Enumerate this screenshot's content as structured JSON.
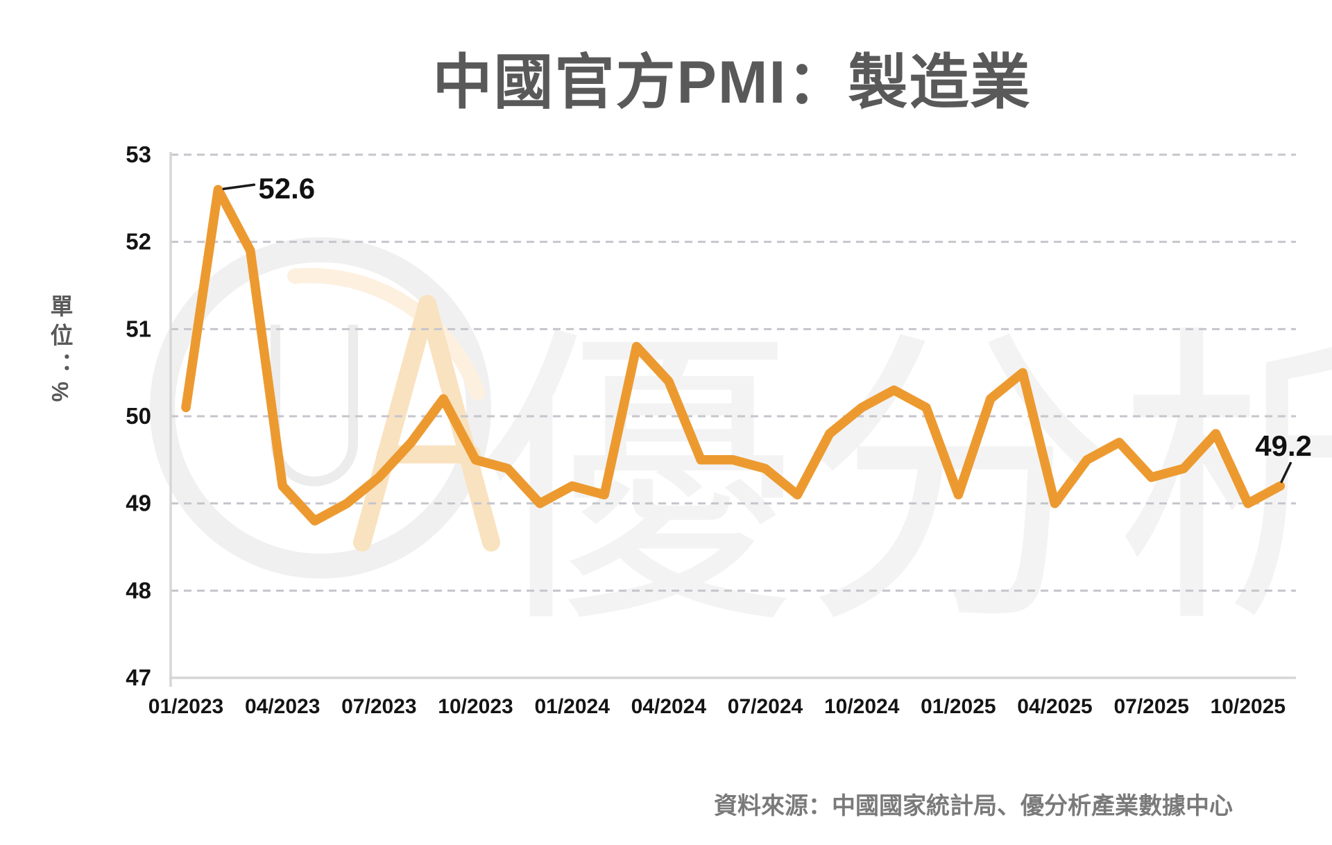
{
  "page": {
    "title": "中國官方PMI：製造業"
  },
  "y_axis": {
    "title": "單位：%",
    "ticks": [
      "53",
      "52",
      "51",
      "50",
      "49",
      "48",
      "47"
    ]
  },
  "x_axis": {
    "ticks": [
      "01/2023",
      "04/2023",
      "07/2023",
      "10/2023",
      "01/2024",
      "04/2024",
      "07/2024",
      "10/2024",
      "01/2025",
      "04/2025",
      "07/2025",
      "10/2025"
    ]
  },
  "source": {
    "note": "資料來源：中國國家統計局、優分析產業數據中心"
  },
  "watermark": {
    "letter_u": "U",
    "letter_a": "A",
    "brand_text": "優分析"
  },
  "colors": {
    "line": "#EC9A30",
    "title_text": "#595959",
    "tick_text": "#141414",
    "grid": "#c5c6cc",
    "axis": "#d6d6d6",
    "source_text": "#7a7a7a",
    "annotation_text": "#111111",
    "watermark_gray": "#f0f0f0",
    "watermark_orange": "#f9e2c0"
  },
  "chart_data": {
    "type": "line",
    "title": "中國官方PMI：製造業",
    "xlabel": "",
    "ylabel": "單位：%",
    "legend": "none",
    "grid": "horizontal-dashed",
    "ylim": [
      47,
      53
    ],
    "y_ticks": [
      53,
      52,
      51,
      50,
      49,
      48,
      47
    ],
    "x_tick_every": 3,
    "x_tick_labels": [
      "01/2023",
      "04/2023",
      "07/2023",
      "10/2023",
      "01/2024",
      "04/2024",
      "07/2024",
      "10/2024",
      "01/2025",
      "04/2025",
      "07/2025",
      "10/2025"
    ],
    "x": [
      "01/2023",
      "02/2023",
      "03/2023",
      "04/2023",
      "05/2023",
      "06/2023",
      "07/2023",
      "08/2023",
      "09/2023",
      "10/2023",
      "11/2023",
      "12/2023",
      "01/2024",
      "02/2024",
      "03/2024",
      "04/2024",
      "05/2024",
      "06/2024",
      "07/2024",
      "08/2024",
      "09/2024",
      "10/2024",
      "11/2024",
      "12/2024",
      "01/2025",
      "02/2025",
      "03/2025",
      "04/2025",
      "05/2025",
      "06/2025",
      "07/2025",
      "08/2025",
      "09/2025",
      "10/2025",
      "11/2025"
    ],
    "series": [
      {
        "name": "中國官方製造業PMI",
        "values": [
          50.1,
          52.6,
          51.9,
          49.2,
          48.8,
          49.0,
          49.3,
          49.7,
          50.2,
          49.5,
          49.4,
          49.0,
          49.2,
          49.1,
          50.8,
          50.4,
          49.5,
          49.5,
          49.4,
          49.1,
          49.8,
          50.1,
          50.3,
          50.1,
          49.1,
          50.2,
          50.5,
          49.0,
          49.5,
          49.7,
          49.3,
          49.4,
          49.8,
          49.0,
          49.2
        ]
      }
    ],
    "line_color": "#EC9A30",
    "annotations": [
      {
        "month": "02/2023",
        "index": 1,
        "value": 52.6,
        "label": "52.6"
      },
      {
        "month": "11/2025",
        "index": 34,
        "value": 49.2,
        "label": "49.2"
      }
    ]
  }
}
